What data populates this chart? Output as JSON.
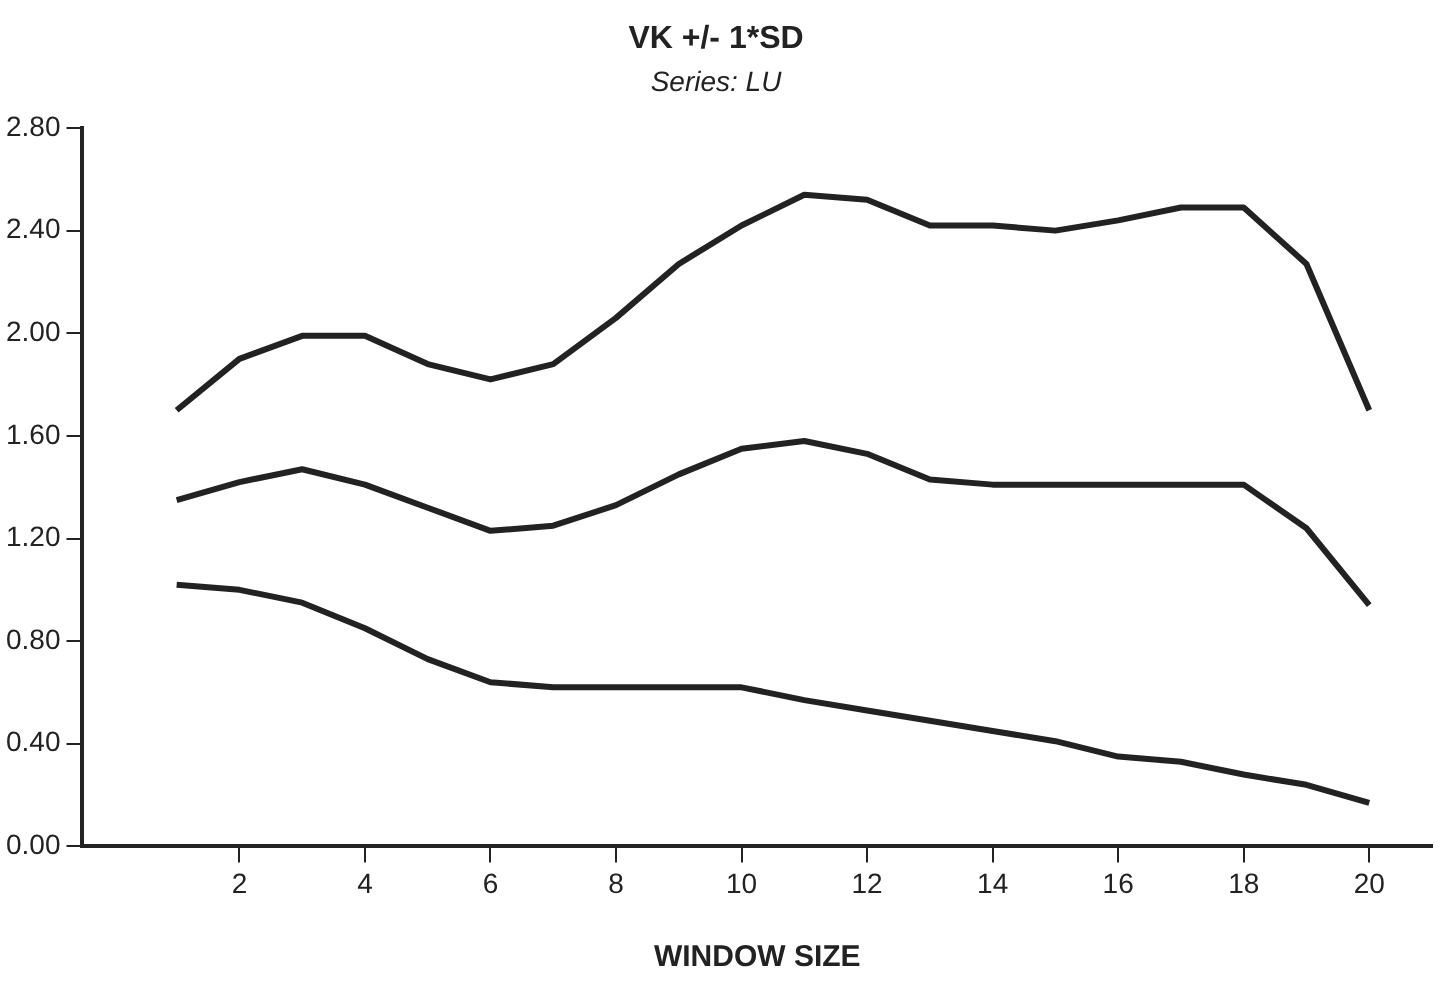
{
  "chart_data": {
    "type": "line",
    "title": "VK +/- 1*SD",
    "subtitle": "Series: LU",
    "xlabel": "WINDOW SIZE",
    "x": [
      1,
      2,
      3,
      4,
      5,
      6,
      7,
      8,
      9,
      10,
      11,
      12,
      13,
      14,
      15,
      16,
      17,
      18,
      19,
      20
    ],
    "series": [
      {
        "color": "#222222",
        "values": [
          1.7,
          1.9,
          1.99,
          1.99,
          1.88,
          1.82,
          1.88,
          2.06,
          2.27,
          2.42,
          2.54,
          2.52,
          2.42,
          2.42,
          2.4,
          2.44,
          2.49,
          2.49,
          2.27,
          1.7
        ]
      },
      {
        "color": "#222222",
        "values": [
          1.35,
          1.42,
          1.47,
          1.41,
          1.32,
          1.23,
          1.25,
          1.33,
          1.45,
          1.55,
          1.58,
          1.53,
          1.43,
          1.41,
          1.41,
          1.41,
          1.41,
          1.41,
          1.24,
          0.94
        ]
      },
      {
        "color": "#222222",
        "values": [
          1.02,
          1.0,
          0.95,
          0.85,
          0.73,
          0.64,
          0.62,
          0.62,
          0.62,
          0.62,
          0.57,
          0.53,
          0.49,
          0.45,
          0.41,
          0.35,
          0.33,
          0.28,
          0.24,
          0.17
        ]
      }
    ],
    "xlim": [
      -0.5,
      21
    ],
    "xticks": [
      2,
      4,
      6,
      8,
      10,
      12,
      14,
      16,
      18,
      20
    ],
    "ylim": [
      0,
      2.8
    ],
    "yticks": [
      {
        "value": 0,
        "label": "0.00"
      },
      {
        "value": 0.4,
        "label": "0.40"
      },
      {
        "value": 0.8,
        "label": "0.80"
      },
      {
        "value": 1.2,
        "label": "1.20"
      },
      {
        "value": 1.6,
        "label": "1.60"
      },
      {
        "value": 2.0,
        "label": "2.00"
      },
      {
        "value": 2.4,
        "label": "2.40"
      },
      {
        "value": 2.8,
        "label": "2.80"
      }
    ],
    "grid": false,
    "legend": false,
    "marker": "none",
    "line_style": "solid"
  }
}
